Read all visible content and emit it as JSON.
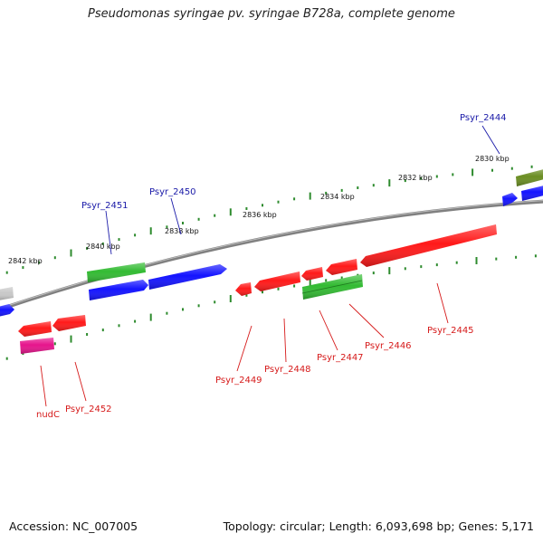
{
  "title": "Pseudomonas syringae pv. syringae B728a, complete genome",
  "footer": {
    "accession": "Accession: NC_007005",
    "summary": "Topology: circular; Length: 6,093,698 bp; Genes: 5,171"
  },
  "colors": {
    "backbone": "#808080",
    "tick": "#2e8b2e",
    "forward_label": "#1a1aa8",
    "reverse_label": "#d61a1a",
    "gene_red": "#ff1a1a",
    "gene_blue": "#1414ff",
    "gene_green": "#33bb33",
    "gene_pink": "#e6148c",
    "gene_olive": "#6b8e23",
    "gene_gray": "#c8c8c8"
  },
  "scale_labels": [
    "2830 kbp",
    "2832 kbp",
    "2834 kbp",
    "2836 kbp",
    "2838 kbp",
    "2840 kbp",
    "2842 kbp"
  ],
  "gene_labels": {
    "Psyr_2444": "Psyr_2444",
    "Psyr_2445": "Psyr_2445",
    "Psyr_2446": "Psyr_2446",
    "Psyr_2447": "Psyr_2447",
    "Psyr_2448": "Psyr_2448",
    "Psyr_2449": "Psyr_2449",
    "Psyr_2450": "Psyr_2450",
    "Psyr_2451": "Psyr_2451",
    "Psyr_2452": "Psyr_2452",
    "nudC": "nudC"
  }
}
